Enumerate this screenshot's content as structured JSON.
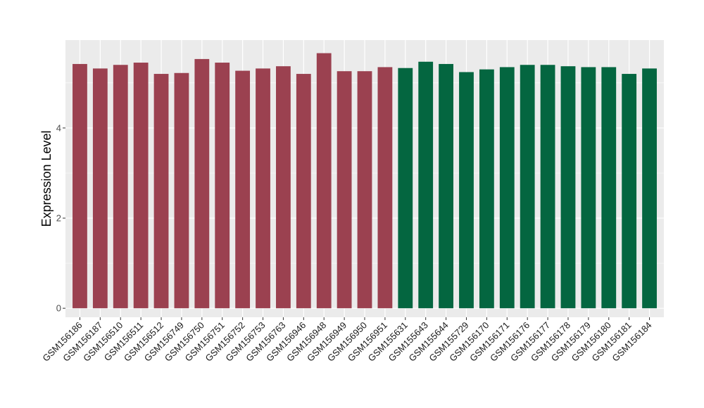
{
  "chart_data": {
    "type": "bar",
    "title": "",
    "xlabel": "",
    "ylabel": "Expression Level",
    "ylim": [
      -0.2,
      5.95
    ],
    "yticks": [
      0,
      2,
      4
    ],
    "grid": true,
    "legend": "none",
    "categories": [
      "GSM156186",
      "GSM156187",
      "GSM156510",
      "GSM156511",
      "GSM156512",
      "GSM156749",
      "GSM156750",
      "GSM156751",
      "GSM156752",
      "GSM156753",
      "GSM156763",
      "GSM156946",
      "GSM156948",
      "GSM156949",
      "GSM156950",
      "GSM156951",
      "GSM155631",
      "GSM155643",
      "GSM155644",
      "GSM155729",
      "GSM156170",
      "GSM156171",
      "GSM156176",
      "GSM156177",
      "GSM156178",
      "GSM156179",
      "GSM156180",
      "GSM156181",
      "GSM156184"
    ],
    "values": [
      5.42,
      5.32,
      5.4,
      5.45,
      5.2,
      5.22,
      5.53,
      5.45,
      5.27,
      5.32,
      5.37,
      5.2,
      5.66,
      5.26,
      5.26,
      5.35,
      5.33,
      5.47,
      5.42,
      5.24,
      5.3,
      5.35,
      5.4,
      5.4,
      5.37,
      5.35,
      5.35,
      5.2,
      5.32
    ],
    "groups": [
      0,
      0,
      0,
      0,
      0,
      0,
      0,
      0,
      0,
      0,
      0,
      0,
      0,
      0,
      0,
      0,
      1,
      1,
      1,
      1,
      1,
      1,
      1,
      1,
      1,
      1,
      1,
      1,
      1
    ],
    "colors": [
      "#9B4150",
      "#046640"
    ]
  },
  "style": {
    "panel_background": "#EBEBEB",
    "grid_color": "#FFFFFF",
    "page_background": "#FFFFFF"
  }
}
